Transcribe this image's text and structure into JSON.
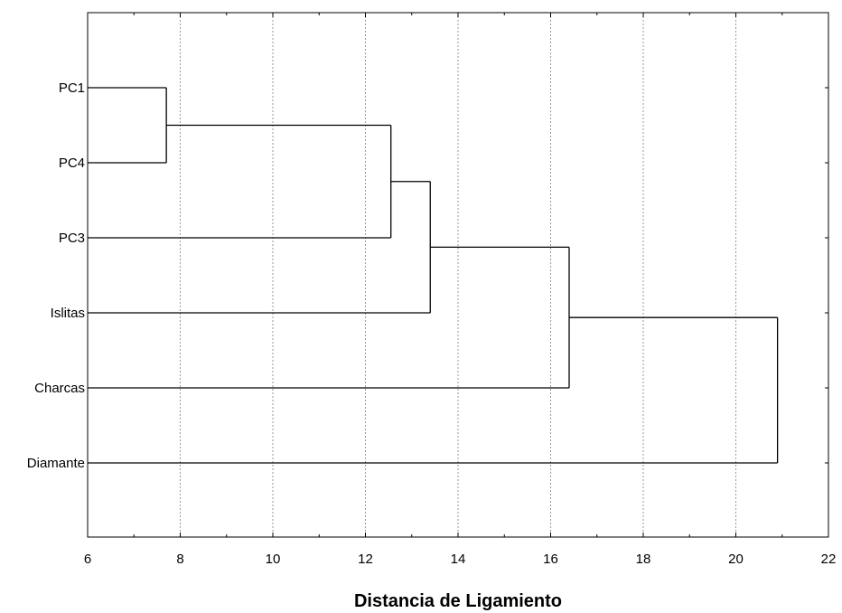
{
  "chart_data": {
    "type": "dendrogram",
    "title": "",
    "xlabel": "Distancia de Ligamiento",
    "ylabel": "",
    "xlim": [
      6,
      22
    ],
    "x_ticks": [
      6,
      8,
      10,
      12,
      14,
      16,
      18,
      20,
      22
    ],
    "grid": "vertical dashed at major ticks",
    "leaves": [
      "PC1",
      "PC4",
      "PC3",
      "Islitas",
      "Charcas",
      "Diamante"
    ],
    "merges": [
      {
        "left": "PC1",
        "right": "PC4",
        "distance": 7.7
      },
      {
        "left": "PC1+PC4",
        "right": "PC3",
        "distance": 12.55
      },
      {
        "left": "PC1+PC4+PC3",
        "right": "Islitas",
        "distance": 13.4
      },
      {
        "left": "PC1+PC4+PC3+Islitas",
        "right": "Charcas",
        "distance": 16.4
      },
      {
        "left": "PC1+PC4+PC3+Islitas+Charcas",
        "right": "Diamante",
        "distance": 20.9
      }
    ]
  }
}
